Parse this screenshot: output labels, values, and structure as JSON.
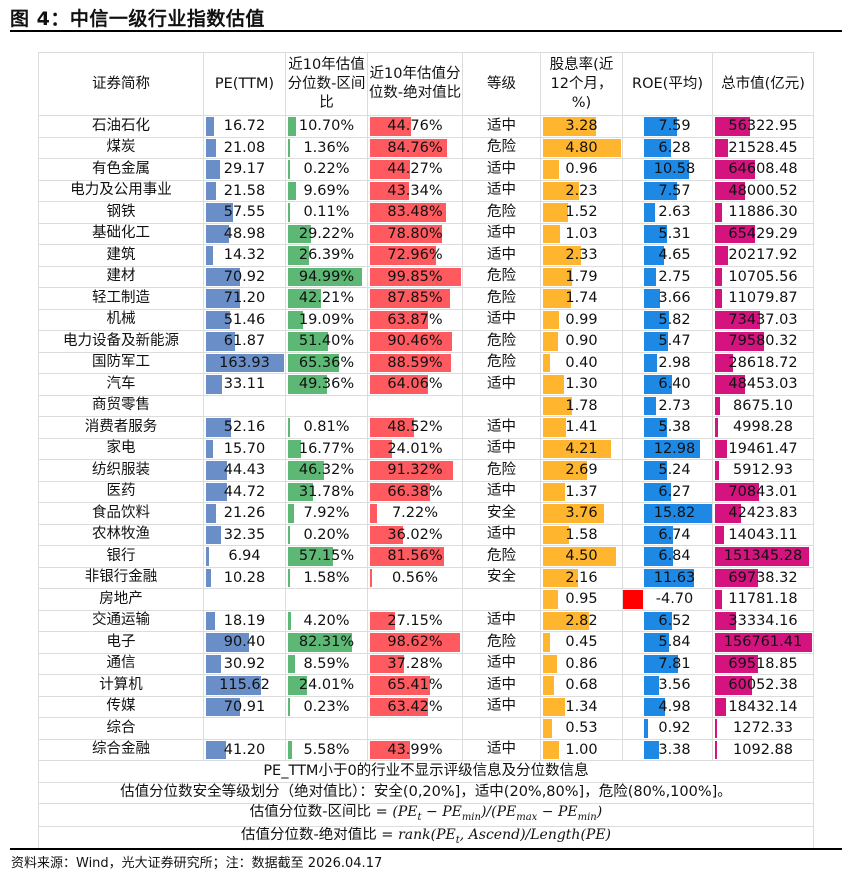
{
  "figure": {
    "title": "图 4：中信一级行业指数估值",
    "source": "资料来源：Wind，光大证券研究所；注：数据截至 2026.04.17"
  },
  "colors": {
    "pe_bar": "#6a8fc8",
    "pct_interval_bar": "#5cb874",
    "pct_absolute_bar": "#ff5a5f",
    "dividend_bar": "#ffb52e",
    "roe_bar": "#1e88e5",
    "roe_negative_bar": "#ff0000",
    "mktcap_bar": "#d4137f"
  },
  "table": {
    "headers": [
      "证券简称",
      "PE(TTM)",
      "近10年估值分位数-区间比",
      "近10年估值分位数-绝对值比",
      "等级",
      "股息率(近12个月，%)",
      "ROE(平均)",
      "总市值(亿元)"
    ],
    "max": {
      "pe": 163.93,
      "dividend": 4.8,
      "roe": 15.82,
      "mktcap": 156761.41
    },
    "rows": [
      {
        "name": "石油石化",
        "pe": "16.72",
        "pct_interval": "10.70%",
        "pct_absolute": "44.76%",
        "level": "适中",
        "dividend": "3.28",
        "roe": "7.59",
        "mktcap": "56322.95"
      },
      {
        "name": "煤炭",
        "pe": "21.08",
        "pct_interval": "1.36%",
        "pct_absolute": "84.76%",
        "level": "危险",
        "dividend": "4.80",
        "roe": "6.28",
        "mktcap": "21528.45"
      },
      {
        "name": "有色金属",
        "pe": "29.17",
        "pct_interval": "0.22%",
        "pct_absolute": "44.27%",
        "level": "适中",
        "dividend": "0.96",
        "roe": "10.58",
        "mktcap": "64608.48"
      },
      {
        "name": "电力及公用事业",
        "pe": "21.58",
        "pct_interval": "9.69%",
        "pct_absolute": "43.34%",
        "level": "适中",
        "dividend": "2.23",
        "roe": "7.57",
        "mktcap": "48000.52"
      },
      {
        "name": "钢铁",
        "pe": "57.55",
        "pct_interval": "0.11%",
        "pct_absolute": "83.48%",
        "level": "危险",
        "dividend": "1.52",
        "roe": "2.63",
        "mktcap": "11886.30"
      },
      {
        "name": "基础化工",
        "pe": "48.98",
        "pct_interval": "29.22%",
        "pct_absolute": "78.80%",
        "level": "适中",
        "dividend": "1.03",
        "roe": "5.31",
        "mktcap": "65429.29"
      },
      {
        "name": "建筑",
        "pe": "14.32",
        "pct_interval": "26.39%",
        "pct_absolute": "72.96%",
        "level": "适中",
        "dividend": "2.33",
        "roe": "4.65",
        "mktcap": "20217.92"
      },
      {
        "name": "建材",
        "pe": "70.92",
        "pct_interval": "94.99%",
        "pct_absolute": "99.85%",
        "level": "危险",
        "dividend": "1.79",
        "roe": "2.75",
        "mktcap": "10705.56"
      },
      {
        "name": "轻工制造",
        "pe": "71.20",
        "pct_interval": "42.21%",
        "pct_absolute": "87.85%",
        "level": "危险",
        "dividend": "1.74",
        "roe": "3.66",
        "mktcap": "11079.87"
      },
      {
        "name": "机械",
        "pe": "51.46",
        "pct_interval": "19.09%",
        "pct_absolute": "63.87%",
        "level": "适中",
        "dividend": "0.99",
        "roe": "5.82",
        "mktcap": "73437.03"
      },
      {
        "name": "电力设备及新能源",
        "pe": "61.87",
        "pct_interval": "51.40%",
        "pct_absolute": "90.46%",
        "level": "危险",
        "dividend": "0.90",
        "roe": "5.47",
        "mktcap": "79580.32"
      },
      {
        "name": "国防军工",
        "pe": "163.93",
        "pct_interval": "65.36%",
        "pct_absolute": "88.59%",
        "level": "危险",
        "dividend": "0.40",
        "roe": "2.98",
        "mktcap": "28618.72"
      },
      {
        "name": "汽车",
        "pe": "33.11",
        "pct_interval": "49.36%",
        "pct_absolute": "64.06%",
        "level": "适中",
        "dividend": "1.30",
        "roe": "6.40",
        "mktcap": "48453.03"
      },
      {
        "name": "商贸零售",
        "pe": "",
        "pct_interval": "",
        "pct_absolute": "",
        "level": "",
        "dividend": "1.78",
        "roe": "2.73",
        "mktcap": "8675.10"
      },
      {
        "name": "消费者服务",
        "pe": "52.16",
        "pct_interval": "0.81%",
        "pct_absolute": "48.52%",
        "level": "适中",
        "dividend": "1.41",
        "roe": "5.38",
        "mktcap": "4998.28"
      },
      {
        "name": "家电",
        "pe": "15.70",
        "pct_interval": "16.77%",
        "pct_absolute": "24.01%",
        "level": "适中",
        "dividend": "4.21",
        "roe": "12.98",
        "mktcap": "19461.47"
      },
      {
        "name": "纺织服装",
        "pe": "44.43",
        "pct_interval": "46.32%",
        "pct_absolute": "91.32%",
        "level": "危险",
        "dividend": "2.69",
        "roe": "5.24",
        "mktcap": "5912.93"
      },
      {
        "name": "医药",
        "pe": "44.72",
        "pct_interval": "31.78%",
        "pct_absolute": "66.38%",
        "level": "适中",
        "dividend": "1.37",
        "roe": "6.27",
        "mktcap": "70843.01"
      },
      {
        "name": "食品饮料",
        "pe": "21.26",
        "pct_interval": "7.92%",
        "pct_absolute": "7.22%",
        "level": "安全",
        "dividend": "3.76",
        "roe": "15.82",
        "mktcap": "42423.83"
      },
      {
        "name": "农林牧渔",
        "pe": "32.35",
        "pct_interval": "0.20%",
        "pct_absolute": "36.02%",
        "level": "适中",
        "dividend": "1.58",
        "roe": "6.74",
        "mktcap": "14043.11"
      },
      {
        "name": "银行",
        "pe": "6.94",
        "pct_interval": "57.15%",
        "pct_absolute": "81.56%",
        "level": "危险",
        "dividend": "4.50",
        "roe": "6.84",
        "mktcap": "151345.28"
      },
      {
        "name": "非银行金融",
        "pe": "10.28",
        "pct_interval": "1.58%",
        "pct_absolute": "0.56%",
        "level": "安全",
        "dividend": "2.16",
        "roe": "11.63",
        "mktcap": "69738.32"
      },
      {
        "name": "房地产",
        "pe": "",
        "pct_interval": "",
        "pct_absolute": "",
        "level": "",
        "dividend": "0.95",
        "roe": "-4.70",
        "mktcap": "11781.18"
      },
      {
        "name": "交通运输",
        "pe": "18.19",
        "pct_interval": "4.20%",
        "pct_absolute": "27.15%",
        "level": "适中",
        "dividend": "2.82",
        "roe": "6.52",
        "mktcap": "33334.16"
      },
      {
        "name": "电子",
        "pe": "90.40",
        "pct_interval": "82.31%",
        "pct_absolute": "98.62%",
        "level": "危险",
        "dividend": "0.45",
        "roe": "5.84",
        "mktcap": "156761.41"
      },
      {
        "name": "通信",
        "pe": "30.92",
        "pct_interval": "8.59%",
        "pct_absolute": "37.28%",
        "level": "适中",
        "dividend": "0.86",
        "roe": "7.81",
        "mktcap": "69518.85"
      },
      {
        "name": "计算机",
        "pe": "115.62",
        "pct_interval": "24.01%",
        "pct_absolute": "65.41%",
        "level": "适中",
        "dividend": "0.68",
        "roe": "3.56",
        "mktcap": "60052.38"
      },
      {
        "name": "传媒",
        "pe": "70.91",
        "pct_interval": "0.23%",
        "pct_absolute": "63.42%",
        "level": "适中",
        "dividend": "1.34",
        "roe": "4.98",
        "mktcap": "18432.14"
      },
      {
        "name": "综合",
        "pe": "",
        "pct_interval": "",
        "pct_absolute": "",
        "level": "",
        "dividend": "0.53",
        "roe": "0.92",
        "mktcap": "1272.33"
      },
      {
        "name": "综合金融",
        "pe": "41.20",
        "pct_interval": "5.58%",
        "pct_absolute": "43.99%",
        "level": "适中",
        "dividend": "1.00",
        "roe": "3.38",
        "mktcap": "1092.88"
      }
    ],
    "notes": {
      "negative_pe": "PE_TTM小于0的行业不显示评级信息及分位数信息",
      "level_rule": "估值分位数安全等级划分（绝对值比）：安全(0,20%]，适中(20%,80%]，危险(80%,100%]。",
      "interval_label": "估值分位数-区间比 = ",
      "interval_formula": "(PE_t − PE_min)/(PE_max − PE_min)",
      "absolute_label": "估值分位数-绝对值比 = ",
      "absolute_formula": "rank(PE_t, Ascend)/Length(PE)"
    }
  }
}
